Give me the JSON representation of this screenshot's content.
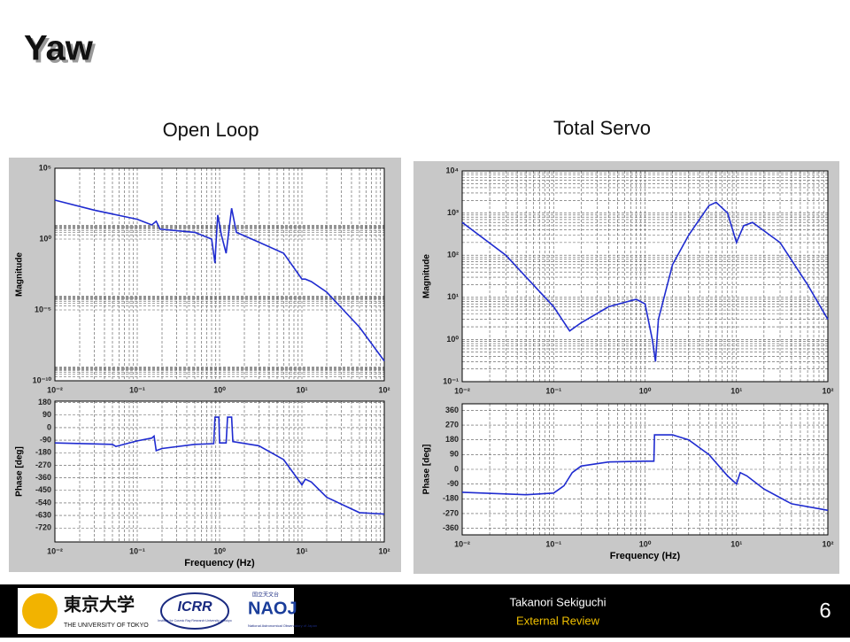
{
  "title": "Yaw",
  "footer": {
    "author": "Takanori Sekiguchi",
    "event": "External Review",
    "page": "6"
  },
  "logos": {
    "utokyo_jp": "東京大学",
    "utokyo_en": "THE UNIVERSITY OF TOKYO",
    "icrr": "ICRR",
    "icrr_sub": "Institute for Cosmic Ray Research University of Tokyo",
    "naoj_jp": "国立天文台",
    "naoj": "NAOJ",
    "naoj_sub": "National Astronomical Observatory of Japan"
  },
  "chart_data": [
    {
      "type": "line",
      "title": "Open Loop",
      "ylabel": "Magnitude",
      "xlog": true,
      "ylog": true,
      "grid": true,
      "color": "#1f2bd0",
      "xlim": [
        0.01,
        100
      ],
      "ylim": [
        1e-10,
        100000
      ],
      "xticks": [
        {
          "value": 0.01,
          "label": "10⁻²"
        },
        {
          "value": 0.1,
          "label": "10⁻¹"
        },
        {
          "value": 1,
          "label": "10⁰"
        },
        {
          "value": 10,
          "label": "10¹"
        },
        {
          "value": 100,
          "label": "10²"
        }
      ],
      "yticks": [
        {
          "value": 100000,
          "label": "10⁵"
        },
        {
          "value": 1,
          "label": "10⁰"
        },
        {
          "value": 1e-05,
          "label": "10⁻⁵"
        },
        {
          "value": 1e-10,
          "label": "10⁻¹⁰"
        }
      ],
      "x": [
        0.01,
        0.03,
        0.1,
        0.15,
        0.17,
        0.19,
        0.5,
        0.8,
        0.88,
        0.9,
        0.95,
        1.05,
        1.2,
        1.4,
        1.6,
        3,
        6,
        10,
        11,
        13,
        20,
        50,
        100
      ],
      "values": [
        560,
        110,
        25,
        10,
        18,
        5,
        3,
        1,
        0.02,
        0.25,
        50,
        2,
        0.1,
        150,
        3,
        0.6,
        0.1,
        0.0015,
        0.0015,
        0.001,
        0.00018,
        6e-07,
        2.5e-09
      ]
    },
    {
      "type": "line",
      "xlabel": "Frequency (Hz)",
      "ylabel": "Phase [deg]",
      "xlog": true,
      "ylog": false,
      "grid": true,
      "color": "#1f2bd0",
      "xlim": [
        0.01,
        100
      ],
      "ylim": [
        -820,
        190
      ],
      "xticks": [
        {
          "value": 0.01,
          "label": "10⁻²"
        },
        {
          "value": 0.1,
          "label": "10⁻¹"
        },
        {
          "value": 1,
          "label": "10⁰"
        },
        {
          "value": 10,
          "label": "10¹"
        },
        {
          "value": 100,
          "label": "10²"
        }
      ],
      "yticks": [
        180,
        90,
        0,
        -90,
        -180,
        -270,
        -360,
        -450,
        -540,
        -630,
        -720
      ],
      "x": [
        0.01,
        0.05,
        0.055,
        0.1,
        0.15,
        0.16,
        0.17,
        0.2,
        0.5,
        0.85,
        0.88,
        0.98,
        1.0,
        1.2,
        1.25,
        1.4,
        1.45,
        3,
        6,
        10,
        11,
        13,
        20,
        50,
        100
      ],
      "values": [
        -110,
        -120,
        -135,
        -95,
        -75,
        -60,
        -165,
        -150,
        -120,
        -115,
        75,
        75,
        -110,
        -110,
        75,
        75,
        -100,
        -130,
        -230,
        -410,
        -370,
        -390,
        -500,
        -610,
        -620
      ]
    },
    {
      "type": "line",
      "title": "Total Servo",
      "ylabel": "Magnitude",
      "xlog": true,
      "ylog": true,
      "grid": true,
      "color": "#1f2bd0",
      "xlim": [
        0.01,
        100
      ],
      "ylim": [
        0.1,
        10000
      ],
      "xticks": [
        {
          "value": 0.01,
          "label": "10⁻²"
        },
        {
          "value": 0.1,
          "label": "10⁻¹"
        },
        {
          "value": 1,
          "label": "10⁰"
        },
        {
          "value": 10,
          "label": "10¹"
        },
        {
          "value": 100,
          "label": "10²"
        }
      ],
      "yticks": [
        {
          "value": 10000,
          "label": "10⁴"
        },
        {
          "value": 1000,
          "label": "10³"
        },
        {
          "value": 100,
          "label": "10²"
        },
        {
          "value": 10,
          "label": "10¹"
        },
        {
          "value": 1,
          "label": "10⁰"
        },
        {
          "value": 0.1,
          "label": "10⁻¹"
        }
      ],
      "x": [
        0.01,
        0.03,
        0.1,
        0.15,
        0.2,
        0.4,
        0.8,
        1.0,
        1.2,
        1.3,
        1.4,
        2,
        3,
        5,
        6,
        8,
        10,
        12,
        15,
        30,
        60,
        100
      ],
      "values": [
        600,
        100,
        6,
        1.6,
        2.5,
        6,
        9,
        7,
        1,
        0.3,
        3,
        60,
        300,
        1500,
        1800,
        1000,
        200,
        500,
        600,
        200,
        20,
        3
      ]
    },
    {
      "type": "line",
      "xlabel": "Frequency (Hz)",
      "ylabel": "Phase [deg]",
      "xlog": true,
      "ylog": false,
      "grid": true,
      "color": "#1f2bd0",
      "xlim": [
        0.01,
        100
      ],
      "ylim": [
        -400,
        400
      ],
      "xticks": [
        {
          "value": 0.01,
          "label": "10⁻²"
        },
        {
          "value": 0.1,
          "label": "10⁻¹"
        },
        {
          "value": 1,
          "label": "10⁰"
        },
        {
          "value": 10,
          "label": "10¹"
        },
        {
          "value": 100,
          "label": "10²"
        }
      ],
      "yticks": [
        360,
        270,
        180,
        90,
        0,
        -90,
        -180,
        -270,
        -360
      ],
      "x": [
        0.01,
        0.05,
        0.1,
        0.13,
        0.16,
        0.2,
        0.4,
        1.0,
        1.25,
        1.27,
        2,
        3,
        5,
        8,
        10,
        11,
        13,
        20,
        40,
        100
      ],
      "values": [
        -140,
        -155,
        -145,
        -100,
        -20,
        20,
        45,
        50,
        50,
        210,
        210,
        180,
        90,
        -40,
        -90,
        -20,
        -40,
        -120,
        -210,
        -250
      ]
    }
  ]
}
